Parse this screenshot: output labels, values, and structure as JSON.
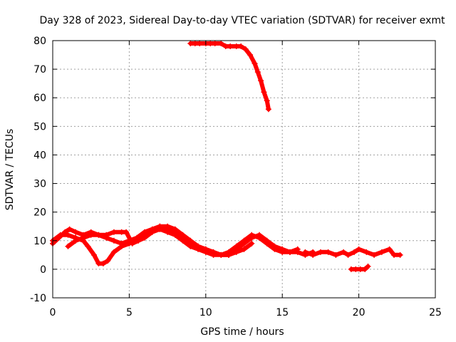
{
  "chart_data": {
    "type": "scatter",
    "title": "Day 328 of 2023, Sidereal Day-to-day VTEC variation (SDTVAR) for receiver exmt",
    "xlabel": "GPS time / hours",
    "ylabel": "SDTVAR / TECUs",
    "xlim": [
      0,
      25
    ],
    "ylim": [
      -10,
      80
    ],
    "xticks": [
      0,
      5,
      10,
      15,
      20,
      25
    ],
    "yticks": [
      -10,
      0,
      10,
      20,
      30,
      40,
      50,
      60,
      70,
      80
    ],
    "grid": true,
    "legend": "none",
    "series_color": "#ff0000",
    "series": [
      {
        "name": "s1",
        "x": [
          0.0,
          0.4,
          0.8,
          1.1,
          1.5,
          2.0,
          2.5,
          3.0,
          3.5,
          4.0,
          4.5,
          5.0,
          5.5,
          6.0,
          6.5,
          7.0,
          7.5,
          8.0,
          8.5,
          9.0,
          9.5,
          10.0,
          10.5,
          11.0,
          11.5,
          12.0,
          12.5,
          13.0,
          13.5,
          14.0,
          14.5,
          15.0,
          15.5,
          16.0
        ],
        "y": [
          9,
          11,
          13,
          14,
          13,
          12,
          13,
          12,
          11,
          10,
          9,
          10,
          11,
          13,
          14,
          15,
          14,
          13,
          11,
          9,
          8,
          7,
          6,
          5,
          5,
          7,
          9,
          11,
          12,
          10,
          8,
          7,
          6,
          7
        ]
      },
      {
        "name": "s2",
        "x": [
          0.0,
          0.5,
          1.0,
          1.5,
          2.0,
          2.3,
          2.7,
          3.0,
          3.3,
          3.6,
          4.0,
          4.5,
          5.0,
          5.5,
          6.0,
          6.5,
          7.0,
          7.5,
          8.0,
          8.5,
          9.0,
          9.5,
          10.0,
          10.5,
          11.0,
          11.5,
          12.0,
          12.5,
          13.0,
          13.5,
          14.0,
          14.5,
          15.0,
          15.5,
          16.0,
          16.5,
          17.0
        ],
        "y": [
          10,
          12,
          12,
          11,
          10,
          8,
          5,
          2,
          2,
          3,
          6,
          8,
          9,
          10,
          12,
          13,
          14,
          13,
          12,
          10,
          8,
          7,
          6,
          5,
          5,
          6,
          8,
          10,
          12,
          11,
          9,
          7,
          6,
          6,
          6,
          5,
          6
        ]
      },
      {
        "name": "s3",
        "x": [
          1.0,
          1.5,
          2.0,
          2.5,
          3.0,
          3.5,
          4.0,
          4.5,
          4.8,
          5.2,
          5.6,
          6.0,
          6.5,
          7.0,
          7.5,
          8.0,
          8.5,
          9.0,
          9.5,
          10.0,
          10.5,
          11.0,
          11.5,
          12.0,
          12.5,
          13.0
        ],
        "y": [
          8,
          10,
          11,
          12,
          12,
          12,
          13,
          13,
          13,
          9,
          10,
          11,
          13,
          15,
          15,
          14,
          12,
          10,
          8,
          7,
          6,
          5,
          5,
          6,
          7,
          9
        ]
      },
      {
        "name": "s4",
        "x": [
          16.5,
          17.0,
          17.5,
          18.0,
          18.5,
          19.0,
          19.3,
          19.7,
          20.0,
          20.5,
          21.0,
          21.5,
          22.0,
          22.3,
          22.7
        ],
        "y": [
          6,
          5,
          6,
          6,
          5,
          6,
          5,
          6,
          7,
          6,
          5,
          6,
          7,
          5,
          5
        ]
      },
      {
        "name": "s5",
        "x": [
          19.5,
          19.8,
          20.1,
          20.4,
          20.6
        ],
        "y": [
          0,
          0,
          0,
          0,
          1
        ]
      },
      {
        "name": "s6",
        "x": [
          9.0,
          9.3,
          9.6,
          10.0,
          10.3,
          10.6,
          11.0,
          11.3,
          11.6,
          12.0,
          12.3,
          12.6,
          12.9,
          13.2,
          13.4,
          13.6,
          13.8,
          14.0,
          14.1
        ],
        "y": [
          79,
          79,
          79,
          79,
          79,
          79,
          79,
          78,
          78,
          78,
          78,
          77,
          75,
          72,
          69,
          66,
          62,
          59,
          56
        ]
      }
    ]
  }
}
